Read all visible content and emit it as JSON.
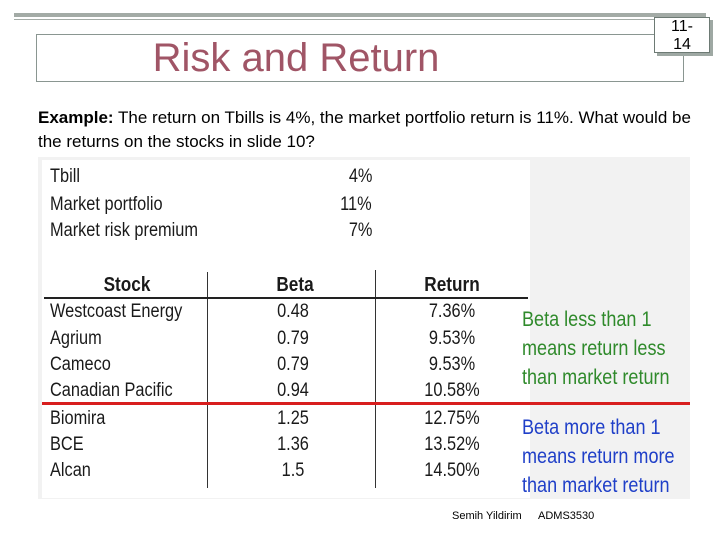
{
  "slide": {
    "title": "Risk and Return",
    "number_line1": "11-",
    "number_line2": "14",
    "intro_bold": "Example:",
    "intro_text": " The return on Tbills is 4%, the market portfolio return is 11%. What would be the returns on the stocks in slide 10?"
  },
  "summary": [
    {
      "label": "Tbill",
      "value": "4%"
    },
    {
      "label": "Market portfolio",
      "value": "11%"
    },
    {
      "label": "Market risk premium",
      "value": "7%"
    }
  ],
  "table": {
    "headers": {
      "stock": "Stock",
      "beta": "Beta",
      "return": "Return"
    },
    "rows": [
      {
        "stock": "Westcoast Energy",
        "beta": "0.48",
        "return": "7.36%"
      },
      {
        "stock": "Agrium",
        "beta": "0.79",
        "return": "9.53%"
      },
      {
        "stock": "Cameco",
        "beta": "0.79",
        "return": "9.53%"
      },
      {
        "stock": "Canadian Pacific",
        "beta": "0.94",
        "return": "10.58%"
      },
      {
        "stock": "Biomira",
        "beta": "1.25",
        "return": "12.75%"
      },
      {
        "stock": "BCE",
        "beta": "1.36",
        "return": "13.52%"
      },
      {
        "stock": "Alcan",
        "beta": "1.5",
        "return": "14.50%"
      }
    ]
  },
  "notes": {
    "less": [
      "Beta less than 1",
      "means return less",
      "than market return"
    ],
    "more": [
      "Beta more than 1",
      "means return more",
      "than market return"
    ],
    "less_color": "#2f8a2b",
    "more_color": "#1f3fc8",
    "divider_color": "#d81e1e"
  },
  "footer": {
    "author": "Semih Yildirim",
    "course": "ADMS3530"
  }
}
